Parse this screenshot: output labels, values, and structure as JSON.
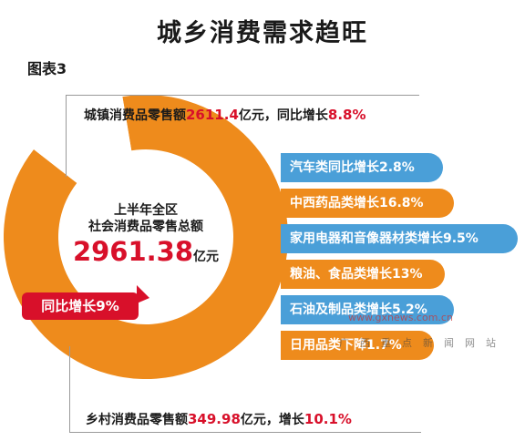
{
  "title": "城乡消费需求趋旺",
  "figure_label": "图表3",
  "colors": {
    "orange": "#ee8b1c",
    "blue": "#4a9fd8",
    "red": "#d8102a"
  },
  "urban": {
    "prefix": "城镇消费品零售额",
    "value": "2611.4",
    "unit": "亿元，同比增长",
    "growth": "8.8%"
  },
  "rural": {
    "prefix": "乡村消费品零售额",
    "value": "349.98",
    "unit": "亿元，增长",
    "growth": "10.1%"
  },
  "center": {
    "line1": "上半年全区",
    "line2": "社会消费品零售总额",
    "value": "2961.38",
    "unit": "亿元"
  },
  "callout": "同比增长9%",
  "watermark": {
    "site": "www.gxnews.com.cn",
    "tagline": "广西重点新闻网站"
  },
  "chart_data": {
    "type": "pie",
    "slices": [
      {
        "name": "城镇消费品零售额",
        "value": 2611.4
      },
      {
        "name": "乡村消费品零售额",
        "value": 349.98
      }
    ],
    "total": 2961.38,
    "categories": [
      {
        "label": "汽车类同比增长2.8%",
        "value": 2.8,
        "color": "blue"
      },
      {
        "label": "中西药品类增长16.8%",
        "value": 16.8,
        "color": "orange"
      },
      {
        "label": "家用电器和音像器材类增长9.5%",
        "value": 9.5,
        "color": "blue"
      },
      {
        "label": "粮油、食品类增长13%",
        "value": 13,
        "color": "orange"
      },
      {
        "label": "石油及制品类增长5.2%",
        "value": 5.2,
        "color": "blue"
      },
      {
        "label": "日用品类下降1.7%",
        "value": -1.7,
        "color": "orange"
      }
    ]
  }
}
